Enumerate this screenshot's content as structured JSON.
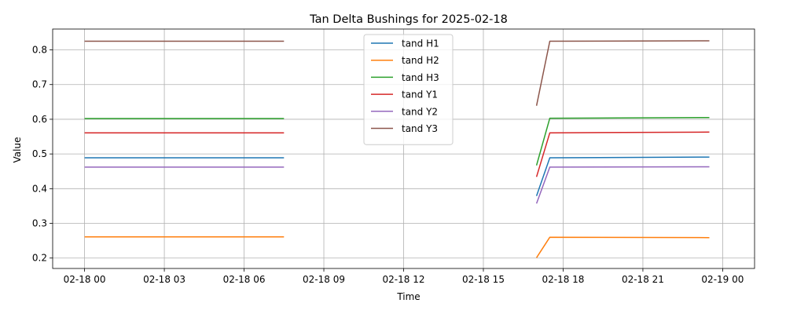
{
  "chart_data": {
    "type": "line",
    "title": "Tan Delta Bushings for 2025-02-18",
    "xlabel": "Time",
    "ylabel": "Value",
    "x_unit": "hours on 2025-02-18",
    "xlim": [
      -1.2,
      25.2
    ],
    "ylim": [
      0.17,
      0.86
    ],
    "grid": true,
    "legend_position": "upper-center",
    "x_ticks": [
      {
        "value": 0,
        "label": "02-18 00"
      },
      {
        "value": 3,
        "label": "02-18 03"
      },
      {
        "value": 6,
        "label": "02-18 06"
      },
      {
        "value": 9,
        "label": "02-18 09"
      },
      {
        "value": 12,
        "label": "02-18 12"
      },
      {
        "value": 15,
        "label": "02-18 15"
      },
      {
        "value": 18,
        "label": "02-18 18"
      },
      {
        "value": 21,
        "label": "02-18 21"
      },
      {
        "value": 24,
        "label": "02-19 00"
      }
    ],
    "y_ticks": [
      {
        "value": 0.2,
        "label": "0.2"
      },
      {
        "value": 0.3,
        "label": "0.3"
      },
      {
        "value": 0.4,
        "label": "0.4"
      },
      {
        "value": 0.5,
        "label": "0.5"
      },
      {
        "value": 0.6,
        "label": "0.6"
      },
      {
        "value": 0.7,
        "label": "0.7"
      },
      {
        "value": 0.8,
        "label": "0.8"
      }
    ],
    "series": [
      {
        "name": "tand H1",
        "color": "#1f77b4",
        "segments": [
          [
            [
              0,
              0.489
            ],
            [
              7.5,
              0.489
            ]
          ],
          [
            [
              17.0,
              0.379
            ],
            [
              17.5,
              0.489
            ],
            [
              23.5,
              0.491
            ]
          ]
        ]
      },
      {
        "name": "tand H2",
        "color": "#ff7f0e",
        "segments": [
          [
            [
              0,
              0.261
            ],
            [
              7.5,
              0.261
            ]
          ],
          [
            [
              17.0,
              0.201
            ],
            [
              17.5,
              0.26
            ],
            [
              23.5,
              0.259
            ]
          ]
        ]
      },
      {
        "name": "tand H3",
        "color": "#2ca02c",
        "segments": [
          [
            [
              0,
              0.602
            ],
            [
              7.5,
              0.602
            ]
          ],
          [
            [
              17.0,
              0.467
            ],
            [
              17.5,
              0.603
            ],
            [
              23.5,
              0.605
            ]
          ]
        ]
      },
      {
        "name": "tand Y1",
        "color": "#d62728",
        "segments": [
          [
            [
              0,
              0.561
            ],
            [
              7.5,
              0.561
            ]
          ],
          [
            [
              17.0,
              0.434
            ],
            [
              17.5,
              0.561
            ],
            [
              23.5,
              0.563
            ]
          ]
        ]
      },
      {
        "name": "tand Y2",
        "color": "#9467bd",
        "segments": [
          [
            [
              0,
              0.462
            ],
            [
              7.5,
              0.462
            ]
          ],
          [
            [
              17.0,
              0.357
            ],
            [
              17.5,
              0.462
            ],
            [
              23.5,
              0.463
            ]
          ]
        ]
      },
      {
        "name": "tand Y3",
        "color": "#8c564b",
        "segments": [
          [
            [
              0,
              0.825
            ],
            [
              7.5,
              0.825
            ]
          ],
          [
            [
              17.0,
              0.639
            ],
            [
              17.5,
              0.825
            ],
            [
              23.5,
              0.826
            ]
          ]
        ]
      }
    ]
  }
}
